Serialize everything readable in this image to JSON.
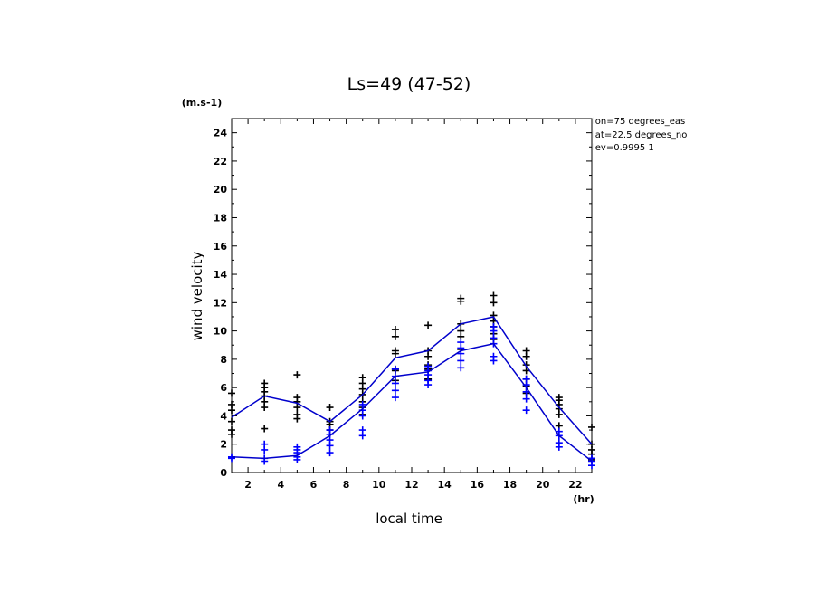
{
  "chart_data": {
    "type": "scatter",
    "title": "Ls=49 (47-52)",
    "xlabel": "local time",
    "ylabel": "wind velocity",
    "x_unit": "(hr)",
    "y_unit": "(m.s-1)",
    "xlim": [
      1,
      23
    ],
    "ylim": [
      0,
      25
    ],
    "x_ticks": [
      "2",
      "4",
      "6",
      "8",
      "10",
      "12",
      "14",
      "16",
      "18",
      "20",
      "22"
    ],
    "y_ticks": [
      "0",
      "2",
      "4",
      "6",
      "8",
      "10",
      "12",
      "14",
      "16",
      "18",
      "20",
      "22",
      "24"
    ],
    "annotations": [
      "lon=75 degrees_eas",
      "lat=22.5 degrees_no",
      "lev=0.9995 1"
    ],
    "series": [
      {
        "color": "#000000",
        "marker": "plus",
        "points": [
          [
            1,
            2.7
          ],
          [
            1,
            3.0
          ],
          [
            1,
            3.6
          ],
          [
            1,
            4.4
          ],
          [
            1,
            4.8
          ],
          [
            1,
            5.6
          ],
          [
            3,
            3.1
          ],
          [
            3,
            4.6
          ],
          [
            3,
            5.0
          ],
          [
            3,
            5.4
          ],
          [
            3,
            5.7
          ],
          [
            3,
            6.0
          ],
          [
            3,
            6.3
          ],
          [
            5,
            3.8
          ],
          [
            5,
            4.1
          ],
          [
            5,
            4.6
          ],
          [
            5,
            5.0
          ],
          [
            5,
            5.3
          ],
          [
            5,
            6.9
          ],
          [
            7,
            3.0
          ],
          [
            7,
            3.4
          ],
          [
            7,
            3.6
          ],
          [
            7,
            4.6
          ],
          [
            9,
            4.1
          ],
          [
            9,
            4.6
          ],
          [
            9,
            5.0
          ],
          [
            9,
            5.5
          ],
          [
            9,
            5.9
          ],
          [
            9,
            6.3
          ],
          [
            9,
            6.7
          ],
          [
            11,
            6.5
          ],
          [
            11,
            7.2
          ],
          [
            11,
            7.3
          ],
          [
            11,
            8.4
          ],
          [
            11,
            8.6
          ],
          [
            11,
            9.6
          ],
          [
            11,
            10.1
          ],
          [
            13,
            6.6
          ],
          [
            13,
            7.3
          ],
          [
            13,
            7.6
          ],
          [
            13,
            8.2
          ],
          [
            13,
            8.6
          ],
          [
            13,
            10.4
          ],
          [
            15,
            8.7
          ],
          [
            15,
            9.6
          ],
          [
            15,
            10.0
          ],
          [
            15,
            10.5
          ],
          [
            15,
            12.1
          ],
          [
            15,
            12.3
          ],
          [
            17,
            9.4
          ],
          [
            17,
            9.8
          ],
          [
            17,
            10.3
          ],
          [
            17,
            10.7
          ],
          [
            17,
            11.1
          ],
          [
            17,
            12.0
          ],
          [
            17,
            12.5
          ],
          [
            19,
            5.6
          ],
          [
            19,
            6.1
          ],
          [
            19,
            6.6
          ],
          [
            19,
            7.2
          ],
          [
            19,
            7.6
          ],
          [
            19,
            8.2
          ],
          [
            19,
            8.6
          ],
          [
            21,
            3.3
          ],
          [
            21,
            4.1
          ],
          [
            21,
            4.5
          ],
          [
            21,
            4.8
          ],
          [
            21,
            5.1
          ],
          [
            21,
            5.3
          ],
          [
            23,
            0.9
          ],
          [
            23,
            1.3
          ],
          [
            23,
            1.6
          ],
          [
            23,
            2.0
          ],
          [
            23,
            3.2
          ]
        ]
      },
      {
        "color": "#0000ff",
        "marker": "plus",
        "points": [
          [
            1,
            1.0
          ],
          [
            1,
            1.1
          ],
          [
            3,
            0.8
          ],
          [
            3,
            1.0
          ],
          [
            3,
            1.6
          ],
          [
            3,
            2.0
          ],
          [
            5,
            0.9
          ],
          [
            5,
            1.1
          ],
          [
            5,
            1.4
          ],
          [
            5,
            1.6
          ],
          [
            5,
            1.8
          ],
          [
            7,
            1.4
          ],
          [
            7,
            1.9
          ],
          [
            7,
            2.3
          ],
          [
            7,
            2.7
          ],
          [
            7,
            3.0
          ],
          [
            9,
            2.6
          ],
          [
            9,
            3.0
          ],
          [
            9,
            4.0
          ],
          [
            9,
            4.4
          ],
          [
            9,
            4.8
          ],
          [
            11,
            5.3
          ],
          [
            11,
            5.8
          ],
          [
            11,
            6.3
          ],
          [
            11,
            6.8
          ],
          [
            11,
            7.3
          ],
          [
            13,
            6.2
          ],
          [
            13,
            6.5
          ],
          [
            13,
            6.9
          ],
          [
            13,
            7.2
          ],
          [
            13,
            7.5
          ],
          [
            15,
            7.4
          ],
          [
            15,
            7.9
          ],
          [
            15,
            8.4
          ],
          [
            15,
            8.8
          ],
          [
            15,
            9.2
          ],
          [
            17,
            7.9
          ],
          [
            17,
            8.2
          ],
          [
            17,
            9.1
          ],
          [
            17,
            9.5
          ],
          [
            17,
            10.0
          ],
          [
            17,
            10.3
          ],
          [
            19,
            4.4
          ],
          [
            19,
            5.2
          ],
          [
            19,
            5.7
          ],
          [
            19,
            6.2
          ],
          [
            19,
            6.6
          ],
          [
            21,
            1.8
          ],
          [
            21,
            2.1
          ],
          [
            21,
            2.6
          ],
          [
            21,
            2.9
          ],
          [
            23,
            0.5
          ],
          [
            23,
            0.8
          ],
          [
            23,
            1.0
          ]
        ]
      },
      {
        "color": "#0000cc",
        "marker": "line",
        "x": [
          1,
          3,
          5,
          7,
          9,
          11,
          13,
          15,
          17,
          19,
          21,
          23
        ],
        "values": [
          3.9,
          5.4,
          4.9,
          3.6,
          5.5,
          8.1,
          8.6,
          10.5,
          11.0,
          7.5,
          4.6,
          2.0
        ]
      },
      {
        "color": "#0000cc",
        "marker": "line",
        "x": [
          1,
          3,
          5,
          7,
          9,
          11,
          13,
          15,
          17,
          19,
          21,
          23
        ],
        "values": [
          1.1,
          1.0,
          1.2,
          2.6,
          4.5,
          6.8,
          7.1,
          8.6,
          9.1,
          6.0,
          2.6,
          0.8
        ]
      }
    ],
    "grid": false,
    "legend": "none"
  }
}
